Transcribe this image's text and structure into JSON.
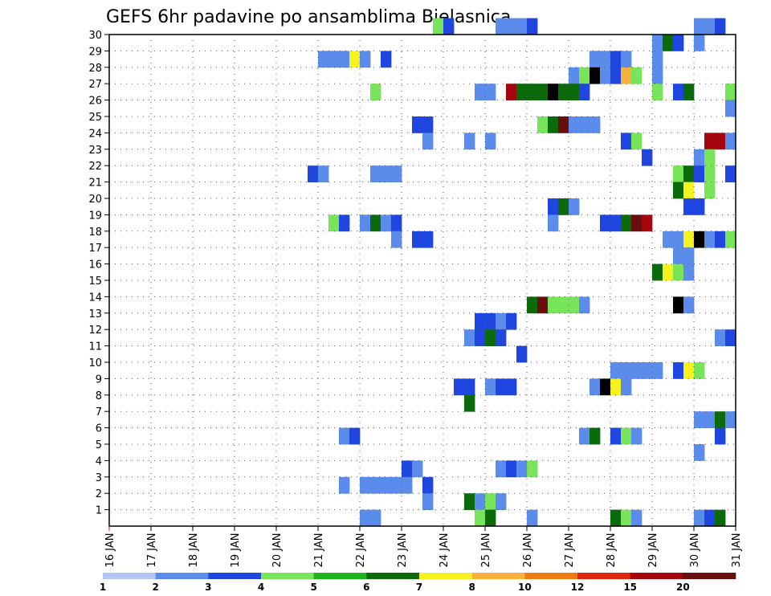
{
  "chart_data": {
    "type": "heatmap",
    "title": "GEFS 6hr padavine po ansamblima Bjelasnica",
    "xlabel": "",
    "ylabel": "",
    "x_ticks": [
      "16 JAN",
      "17 JAN",
      "18 JAN",
      "19 JAN",
      "20 JAN",
      "21 JAN",
      "22 JAN",
      "23 JAN",
      "24 JAN",
      "25 JAN",
      "26 JAN",
      "27 JAN",
      "28 JAN",
      "29 JAN",
      "30 JAN",
      "31 JAN"
    ],
    "y_ticks": [
      "1",
      "2",
      "3",
      "4",
      "5",
      "6",
      "7",
      "8",
      "9",
      "10",
      "11",
      "12",
      "13",
      "14",
      "15",
      "16",
      "17",
      "18",
      "19",
      "20",
      "21",
      "22",
      "23",
      "24",
      "25",
      "26",
      "27",
      "28",
      "29",
      "30"
    ],
    "xlim": [
      0,
      60
    ],
    "ylim": [
      0,
      30
    ],
    "x_unit": "6-hour step from 16 JAN 00Z",
    "legend": {
      "labels": [
        "1",
        "2",
        "3",
        "4",
        "5",
        "6",
        "7",
        "8",
        "10",
        "12",
        "15",
        "20"
      ],
      "colors": [
        "#b4c5f5",
        "#5b8cec",
        "#1f47e0",
        "#78e45a",
        "#1bb51b",
        "#0b6b0b",
        "#f6f21e",
        "#f7b03c",
        "#f07a10",
        "#e0260e",
        "#a5060e",
        "#6a0d0d"
      ]
    },
    "cells": [
      [
        30,
        31,
        3
      ],
      [
        30,
        32,
        2
      ],
      [
        30,
        37,
        1
      ],
      [
        30,
        38,
        1
      ],
      [
        30,
        39,
        1
      ],
      [
        30,
        40,
        2
      ],
      [
        30,
        56,
        1
      ],
      [
        30,
        57,
        1
      ],
      [
        30,
        58,
        2
      ],
      [
        29,
        52,
        1
      ],
      [
        29,
        53,
        5
      ],
      [
        29,
        54,
        2
      ],
      [
        29,
        56,
        1
      ],
      [
        28,
        20,
        1
      ],
      [
        28,
        21,
        1
      ],
      [
        28,
        22,
        1
      ],
      [
        28,
        23,
        6
      ],
      [
        28,
        24,
        1
      ],
      [
        28,
        26,
        2
      ],
      [
        28,
        46,
        1
      ],
      [
        28,
        47,
        1
      ],
      [
        28,
        48,
        2
      ],
      [
        28,
        49,
        1
      ],
      [
        28,
        52,
        1
      ],
      [
        27,
        44,
        1
      ],
      [
        27,
        45,
        3
      ],
      [
        27,
        46,
        12
      ],
      [
        27,
        47,
        1
      ],
      [
        27,
        48,
        2
      ],
      [
        27,
        49,
        7
      ],
      [
        27,
        50,
        3
      ],
      [
        27,
        52,
        1
      ],
      [
        26,
        25,
        3
      ],
      [
        26,
        35,
        1
      ],
      [
        26,
        36,
        1
      ],
      [
        26,
        38,
        10
      ],
      [
        26,
        39,
        5
      ],
      [
        26,
        40,
        5
      ],
      [
        26,
        41,
        5
      ],
      [
        26,
        42,
        12
      ],
      [
        26,
        43,
        5
      ],
      [
        26,
        44,
        5
      ],
      [
        26,
        45,
        2
      ],
      [
        26,
        52,
        3
      ],
      [
        26,
        54,
        2
      ],
      [
        26,
        55,
        5
      ],
      [
        26,
        59,
        3
      ],
      [
        25,
        59,
        1
      ],
      [
        24,
        29,
        2
      ],
      [
        24,
        30,
        2
      ],
      [
        24,
        41,
        3
      ],
      [
        24,
        42,
        5
      ],
      [
        24,
        43,
        11
      ],
      [
        24,
        44,
        1
      ],
      [
        24,
        45,
        1
      ],
      [
        24,
        46,
        1
      ],
      [
        23,
        30,
        1
      ],
      [
        23,
        34,
        1
      ],
      [
        23,
        36,
        1
      ],
      [
        23,
        49,
        2
      ],
      [
        23,
        50,
        3
      ],
      [
        23,
        57,
        10
      ],
      [
        23,
        58,
        10
      ],
      [
        23,
        59,
        1
      ],
      [
        22,
        51,
        2
      ],
      [
        22,
        56,
        1
      ],
      [
        22,
        57,
        3
      ],
      [
        21,
        19,
        2
      ],
      [
        21,
        20,
        1
      ],
      [
        21,
        25,
        1
      ],
      [
        21,
        26,
        1
      ],
      [
        21,
        27,
        1
      ],
      [
        21,
        54,
        3
      ],
      [
        21,
        55,
        5
      ],
      [
        21,
        56,
        2
      ],
      [
        21,
        57,
        3
      ],
      [
        21,
        59,
        2
      ],
      [
        20,
        54,
        5
      ],
      [
        20,
        55,
        6
      ],
      [
        20,
        57,
        3
      ],
      [
        19,
        42,
        2
      ],
      [
        19,
        43,
        5
      ],
      [
        19,
        44,
        1
      ],
      [
        19,
        55,
        2
      ],
      [
        19,
        56,
        2
      ],
      [
        18,
        21,
        3
      ],
      [
        18,
        22,
        2
      ],
      [
        18,
        24,
        1
      ],
      [
        18,
        25,
        5
      ],
      [
        18,
        26,
        1
      ],
      [
        18,
        27,
        2
      ],
      [
        18,
        42,
        1
      ],
      [
        18,
        47,
        2
      ],
      [
        18,
        48,
        2
      ],
      [
        18,
        49,
        5
      ],
      [
        18,
        50,
        11
      ],
      [
        18,
        51,
        10
      ],
      [
        17,
        27,
        1
      ],
      [
        17,
        29,
        2
      ],
      [
        17,
        30,
        2
      ],
      [
        17,
        53,
        1
      ],
      [
        17,
        54,
        1
      ],
      [
        17,
        55,
        6
      ],
      [
        17,
        56,
        20
      ],
      [
        17,
        57,
        1
      ],
      [
        17,
        58,
        2
      ],
      [
        17,
        59,
        3
      ],
      [
        16,
        54,
        1
      ],
      [
        16,
        55,
        1
      ],
      [
        15,
        52,
        5
      ],
      [
        15,
        53,
        6
      ],
      [
        15,
        54,
        3
      ],
      [
        15,
        55,
        1
      ],
      [
        13,
        40,
        5
      ],
      [
        13,
        41,
        11
      ],
      [
        13,
        42,
        3
      ],
      [
        13,
        43,
        3
      ],
      [
        13,
        44,
        3
      ],
      [
        13,
        45,
        1
      ],
      [
        13,
        54,
        15
      ],
      [
        13,
        55,
        1
      ],
      [
        12,
        35,
        2
      ],
      [
        12,
        36,
        2
      ],
      [
        12,
        37,
        1
      ],
      [
        12,
        38,
        2
      ],
      [
        11,
        34,
        1
      ],
      [
        11,
        35,
        2
      ],
      [
        11,
        36,
        5
      ],
      [
        11,
        37,
        2
      ],
      [
        11,
        58,
        1
      ],
      [
        11,
        59,
        2
      ],
      [
        10,
        39,
        2
      ],
      [
        9,
        48,
        1
      ],
      [
        9,
        49,
        1
      ],
      [
        9,
        50,
        1
      ],
      [
        9,
        51,
        1
      ],
      [
        9,
        52,
        1
      ],
      [
        9,
        54,
        2
      ],
      [
        9,
        55,
        6
      ],
      [
        9,
        56,
        3
      ],
      [
        8,
        33,
        2
      ],
      [
        8,
        34,
        2
      ],
      [
        8,
        36,
        1
      ],
      [
        8,
        37,
        2
      ],
      [
        8,
        38,
        2
      ],
      [
        8,
        46,
        1
      ],
      [
        8,
        47,
        15
      ],
      [
        8,
        48,
        6
      ],
      [
        8,
        49,
        1
      ],
      [
        7,
        34,
        5
      ],
      [
        6,
        56,
        1
      ],
      [
        6,
        57,
        1
      ],
      [
        6,
        58,
        5
      ],
      [
        6,
        59,
        1
      ],
      [
        5,
        22,
        1
      ],
      [
        5,
        23,
        2
      ],
      [
        5,
        45,
        1
      ],
      [
        5,
        46,
        5
      ],
      [
        5,
        48,
        2
      ],
      [
        5,
        49,
        3
      ],
      [
        5,
        50,
        1
      ],
      [
        5,
        58,
        2
      ],
      [
        4,
        56,
        1
      ],
      [
        3,
        28,
        2
      ],
      [
        3,
        29,
        1
      ],
      [
        3,
        37,
        1
      ],
      [
        3,
        38,
        2
      ],
      [
        3,
        39,
        1
      ],
      [
        3,
        40,
        3
      ],
      [
        2,
        22,
        1
      ],
      [
        2,
        24,
        1
      ],
      [
        2,
        25,
        1
      ],
      [
        2,
        26,
        1
      ],
      [
        2,
        27,
        1
      ],
      [
        2,
        28,
        1
      ],
      [
        2,
        30,
        2
      ],
      [
        1,
        30,
        1
      ],
      [
        1,
        34,
        5
      ],
      [
        1,
        35,
        1
      ],
      [
        1,
        36,
        3
      ],
      [
        1,
        37,
        1
      ],
      [
        0,
        24,
        1
      ],
      [
        0,
        25,
        1
      ],
      [
        0,
        35,
        3
      ],
      [
        0,
        36,
        5
      ],
      [
        0,
        40,
        1
      ],
      [
        0,
        48,
        5
      ],
      [
        0,
        49,
        3
      ],
      [
        0,
        50,
        1
      ],
      [
        0,
        56,
        1
      ],
      [
        0,
        57,
        2
      ],
      [
        0,
        58,
        5
      ]
    ]
  }
}
